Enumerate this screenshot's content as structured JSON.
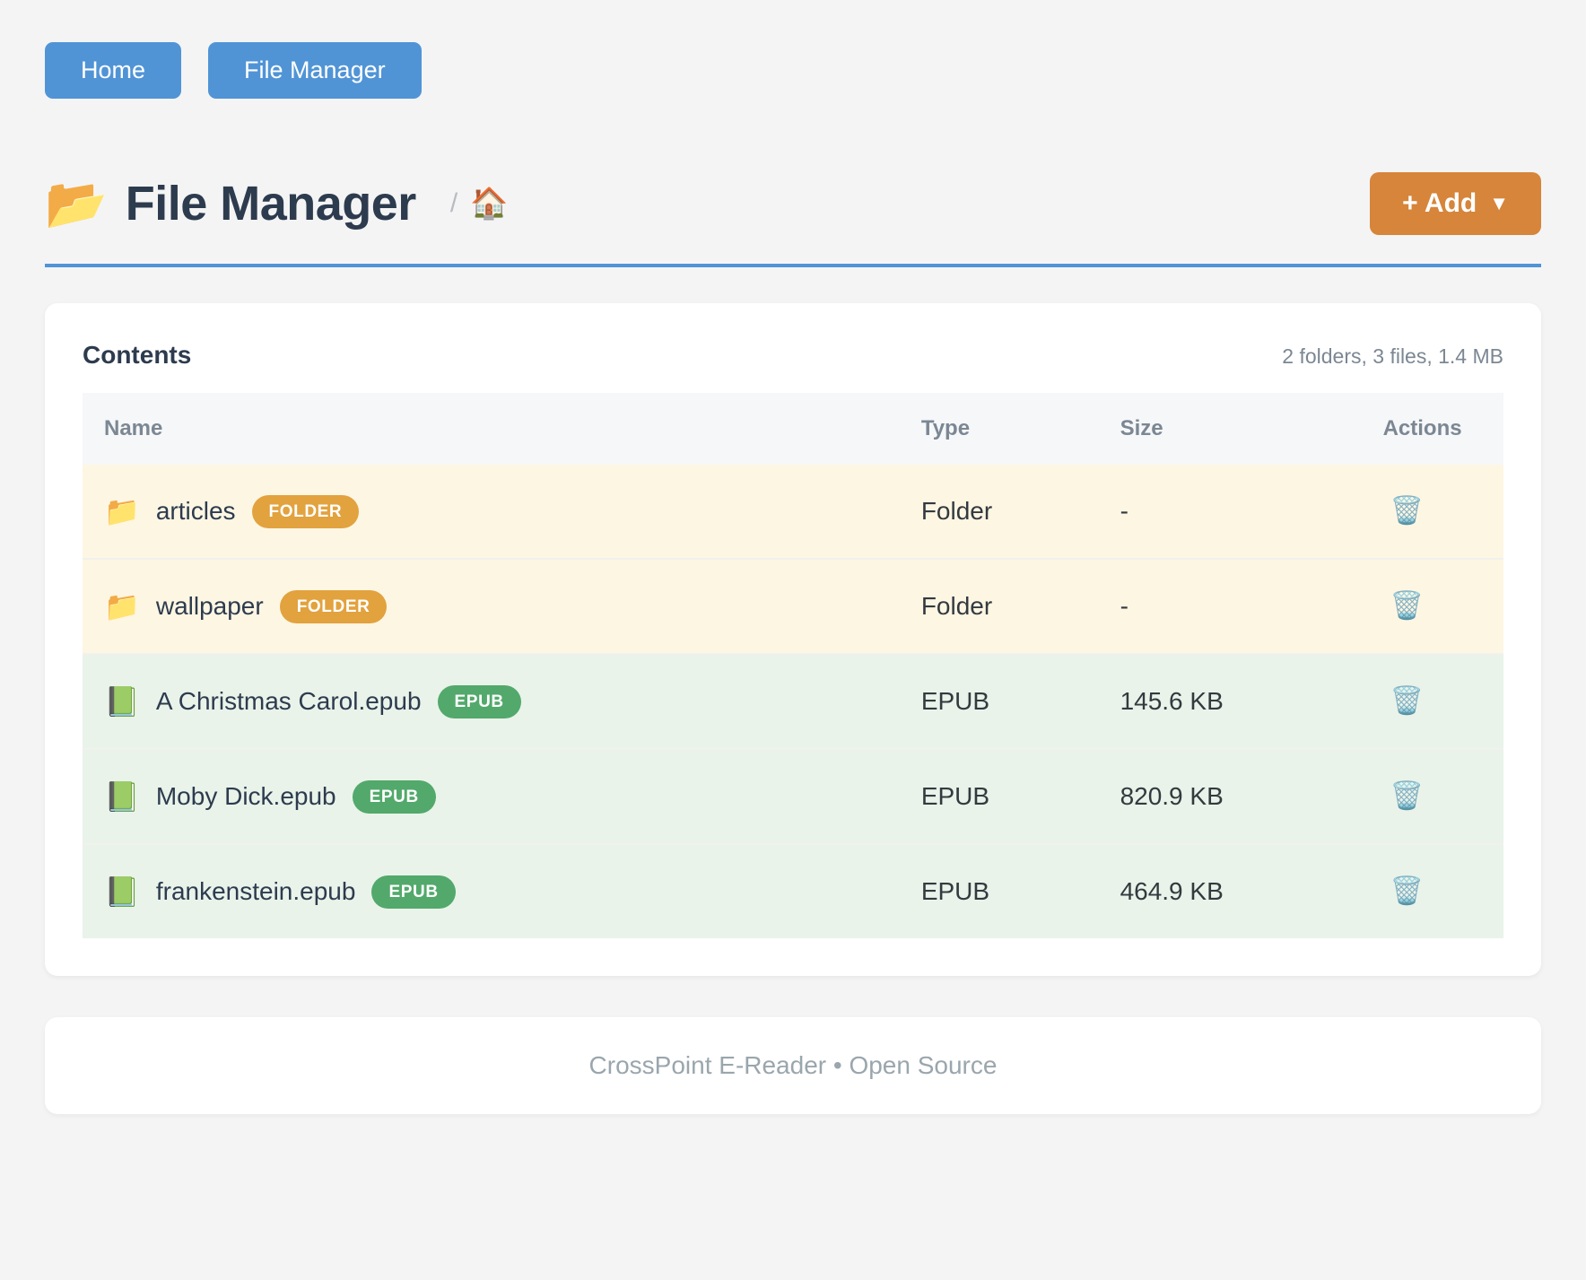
{
  "colors": {
    "nav_blue": "#5094D6",
    "accent_rule_blue": "#5094D6",
    "add_orange": "#D6853A",
    "folder_badge_orange": "#E2A23E",
    "epub_badge_green": "#52A96B",
    "folder_row_bg": "#FDF6E3",
    "file_row_bg": "#E9F3EA",
    "heading_dark": "#2D3B4E",
    "muted_gray": "#7B8793"
  },
  "nav": {
    "home_label": "Home",
    "file_manager_label": "File Manager"
  },
  "header": {
    "folder_icon": "📂",
    "title": "File Manager",
    "breadcrumb_separator": "/",
    "home_icon": "🏠",
    "add_button_label": "+ Add",
    "add_button_caret": "▼"
  },
  "panel": {
    "title": "Contents",
    "summary": "2 folders, 3 files, 1.4 MB",
    "table": {
      "headers": [
        "Name",
        "Type",
        "Size",
        "Actions"
      ],
      "rows": [
        {
          "icon": "📁",
          "name": "articles",
          "badge": "FOLDER",
          "type": "Folder",
          "size": "-",
          "delete_icon": "🗑️"
        },
        {
          "icon": "📁",
          "name": "wallpaper",
          "badge": "FOLDER",
          "type": "Folder",
          "size": "-",
          "delete_icon": "🗑️"
        },
        {
          "icon": "📗",
          "name": "A Christmas Carol.epub",
          "badge": "EPUB",
          "type": "EPUB",
          "size": "145.6 KB",
          "delete_icon": "🗑️"
        },
        {
          "icon": "📗",
          "name": "Moby Dick.epub",
          "badge": "EPUB",
          "type": "EPUB",
          "size": "820.9 KB",
          "delete_icon": "🗑️"
        },
        {
          "icon": "📗",
          "name": "frankenstein.epub",
          "badge": "EPUB",
          "type": "EPUB",
          "size": "464.9 KB",
          "delete_icon": "🗑️"
        }
      ]
    }
  },
  "footer": {
    "text": "CrossPoint E-Reader • Open Source"
  }
}
